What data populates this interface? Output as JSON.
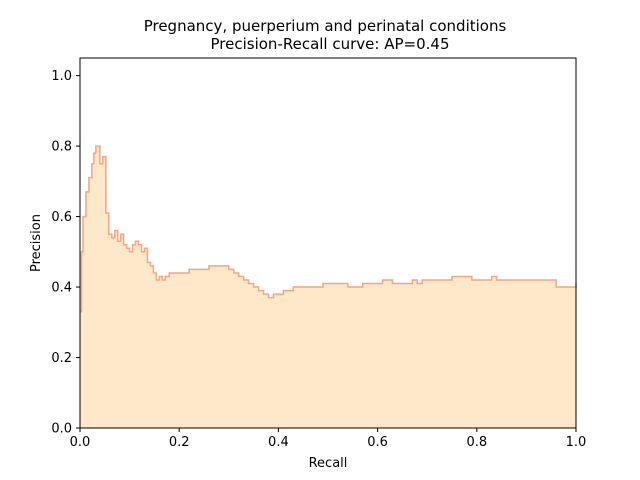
{
  "chart_data": {
    "type": "area",
    "step": true,
    "title": "Pregnancy, puerperium and perinatal conditions",
    "subtitle": "Precision-Recall curve: AP=0.45",
    "xlabel": "Recall",
    "ylabel": "Precision",
    "xlim": [
      0.0,
      1.0
    ],
    "ylim": [
      0.0,
      1.05
    ],
    "x_ticks": [
      0.0,
      0.2,
      0.4,
      0.6,
      0.8,
      1.0
    ],
    "y_ticks": [
      0.0,
      0.2,
      0.4,
      0.6,
      0.8,
      1.0
    ],
    "x_tick_labels": [
      "0.0",
      "0.2",
      "0.4",
      "0.6",
      "0.8",
      "1.0"
    ],
    "y_tick_labels": [
      "0.0",
      "0.2",
      "0.4",
      "0.6",
      "0.8",
      "1.0"
    ],
    "grid": false,
    "colors": {
      "line": "#f4a582",
      "fill": "#fde9c9"
    },
    "series": [
      {
        "recall": [
          0.0,
          0.003,
          0.006,
          0.012,
          0.018,
          0.024,
          0.028,
          0.032,
          0.036,
          0.04,
          0.046,
          0.052,
          0.058,
          0.064,
          0.07,
          0.076,
          0.082,
          0.088,
          0.094,
          0.1,
          0.106,
          0.112,
          0.118,
          0.124,
          0.13,
          0.136,
          0.142,
          0.148,
          0.154,
          0.16,
          0.166,
          0.172,
          0.18,
          0.19,
          0.2,
          0.21,
          0.22,
          0.23,
          0.24,
          0.25,
          0.26,
          0.27,
          0.28,
          0.29,
          0.3,
          0.31,
          0.32,
          0.33,
          0.34,
          0.35,
          0.36,
          0.37,
          0.38,
          0.39,
          0.4,
          0.41,
          0.42,
          0.43,
          0.44,
          0.45,
          0.46,
          0.47,
          0.48,
          0.49,
          0.5,
          0.51,
          0.52,
          0.53,
          0.54,
          0.55,
          0.56,
          0.57,
          0.58,
          0.59,
          0.6,
          0.61,
          0.62,
          0.63,
          0.64,
          0.65,
          0.66,
          0.67,
          0.68,
          0.69,
          0.7,
          0.71,
          0.72,
          0.73,
          0.74,
          0.75,
          0.76,
          0.77,
          0.78,
          0.79,
          0.8,
          0.81,
          0.82,
          0.83,
          0.84,
          0.85,
          0.86,
          0.87,
          0.88,
          0.89,
          0.9,
          0.91,
          0.92,
          0.93,
          0.94,
          0.95,
          0.96,
          0.97,
          0.98,
          1.0
        ],
        "precision": [
          0.33,
          0.5,
          0.6,
          0.67,
          0.71,
          0.75,
          0.78,
          0.8,
          0.8,
          0.75,
          0.77,
          0.61,
          0.55,
          0.54,
          0.56,
          0.53,
          0.55,
          0.52,
          0.51,
          0.5,
          0.52,
          0.53,
          0.52,
          0.5,
          0.51,
          0.47,
          0.46,
          0.44,
          0.42,
          0.43,
          0.42,
          0.43,
          0.44,
          0.44,
          0.44,
          0.44,
          0.45,
          0.45,
          0.45,
          0.45,
          0.46,
          0.46,
          0.46,
          0.46,
          0.45,
          0.44,
          0.43,
          0.42,
          0.41,
          0.4,
          0.39,
          0.38,
          0.37,
          0.38,
          0.38,
          0.39,
          0.39,
          0.4,
          0.4,
          0.4,
          0.4,
          0.4,
          0.4,
          0.41,
          0.41,
          0.41,
          0.41,
          0.41,
          0.4,
          0.4,
          0.4,
          0.41,
          0.41,
          0.41,
          0.41,
          0.42,
          0.42,
          0.41,
          0.41,
          0.41,
          0.41,
          0.42,
          0.41,
          0.42,
          0.42,
          0.42,
          0.42,
          0.42,
          0.42,
          0.43,
          0.43,
          0.43,
          0.43,
          0.42,
          0.42,
          0.42,
          0.42,
          0.43,
          0.42,
          0.42,
          0.42,
          0.42,
          0.42,
          0.42,
          0.42,
          0.42,
          0.42,
          0.42,
          0.42,
          0.42,
          0.4,
          0.4,
          0.4,
          0.41
        ]
      }
    ]
  }
}
